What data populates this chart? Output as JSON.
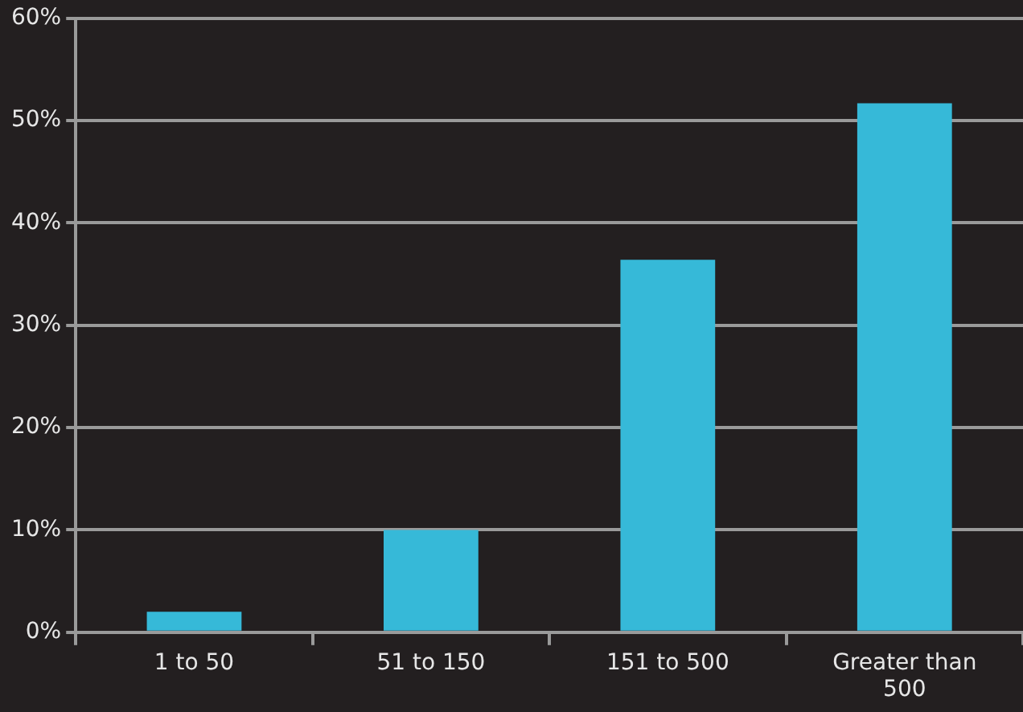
{
  "chart_data": {
    "type": "bar",
    "categories": [
      "1 to 50",
      "51 to 150",
      "151 to 500",
      "Greater than 500"
    ],
    "values": [
      2,
      10,
      36.4,
      51.7
    ],
    "color": "#36b9d8",
    "ylim": [
      0,
      60
    ],
    "yticks": [
      {
        "value": 0,
        "label": "0%"
      },
      {
        "value": 10,
        "label": "10%"
      },
      {
        "value": 20,
        "label": "20%"
      },
      {
        "value": 30,
        "label": "30%"
      },
      {
        "value": 40,
        "label": "40%"
      },
      {
        "value": 50,
        "label": "50%"
      },
      {
        "value": 60,
        "label": "60%"
      }
    ],
    "grid": "y",
    "legend": false
  }
}
